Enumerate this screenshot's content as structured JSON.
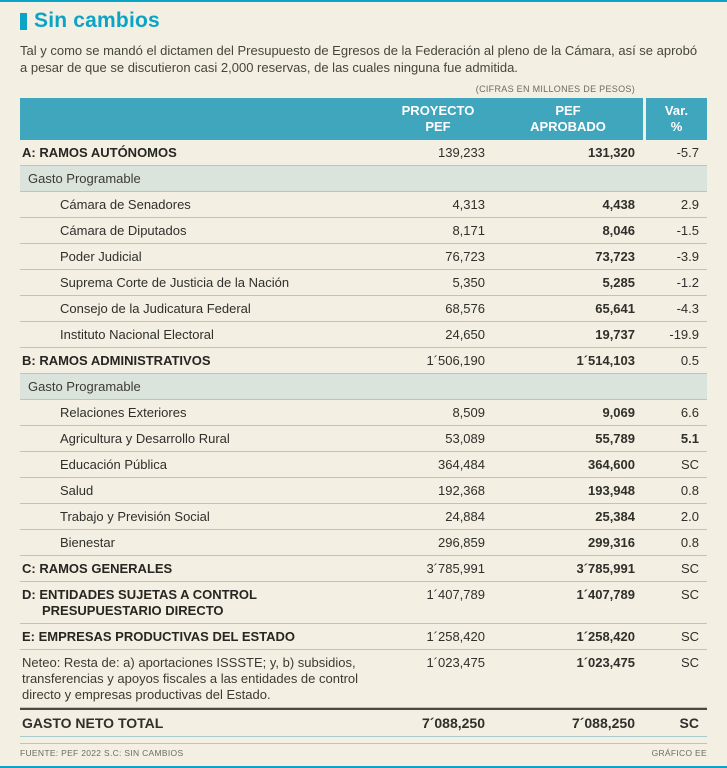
{
  "page": {
    "title": "Sin cambios",
    "intro": "Tal y como se mandó el dictamen del Presupuesto de Egresos de la Federación al pleno de la Cámara, así se aprobó a pesar de que se discutieron casi 2,000 reservas, de las cuales ninguna fue admitida.",
    "units_note": "(CIFRAS EN MILLONES DE PESOS)",
    "footer_source": "FUENTE: PEF 2022  S.C: SIN CAMBIOS",
    "footer_credit": "GRÁFICO EE"
  },
  "colors": {
    "accent_cyan": "#0ca4c6",
    "header_teal": "#3fa6bd",
    "band_background": "#dae4dd",
    "page_background": "#f3efe2"
  },
  "chart_data": {
    "type": "table",
    "title": "Sin cambios",
    "columns": [
      "",
      "PROYECTO\nPEF",
      "PEF\nAPROBADO",
      "Var.\n%"
    ],
    "rows": [
      {
        "type": "major",
        "label": "A: RAMOS AUTÓNOMOS",
        "proyecto": "139,233",
        "aprobado": "131,320",
        "var": "-5.7"
      },
      {
        "type": "band",
        "label": "Gasto Programable"
      },
      {
        "type": "item",
        "label": "Cámara de Senadores",
        "proyecto": "4,313",
        "aprobado": "4,438",
        "var": "2.9"
      },
      {
        "type": "item",
        "label": "Cámara de Diputados",
        "proyecto": "8,171",
        "aprobado": "8,046",
        "var": "-1.5"
      },
      {
        "type": "item",
        "label": "Poder Judicial",
        "proyecto": "76,723",
        "aprobado": "73,723",
        "var": "-3.9"
      },
      {
        "type": "item",
        "label": "Suprema Corte de Justicia de la Nación",
        "proyecto": "5,350",
        "aprobado": "5,285",
        "var": "-1.2"
      },
      {
        "type": "item",
        "label": "Consejo de la Judicatura Federal",
        "proyecto": "68,576",
        "aprobado": "65,641",
        "var": "-4.3"
      },
      {
        "type": "item",
        "label": "Instituto Nacional Electoral",
        "proyecto": "24,650",
        "aprobado": "19,737",
        "var": "-19.9"
      },
      {
        "type": "major",
        "label": "B: RAMOS ADMINISTRATIVOS",
        "proyecto": "1´506,190",
        "aprobado": "1´514,103",
        "var": "0.5"
      },
      {
        "type": "band",
        "label": "Gasto Programable"
      },
      {
        "type": "item",
        "label": "Relaciones Exteriores",
        "proyecto": "8,509",
        "aprobado": "9,069",
        "var": "6.6"
      },
      {
        "type": "item",
        "label": "Agricultura y Desarrollo Rural",
        "proyecto": "53,089",
        "aprobado": "55,789",
        "var": "5.1",
        "var_bold": true
      },
      {
        "type": "item",
        "label": "Educación Pública",
        "proyecto": "364,484",
        "aprobado": "364,600",
        "var": "SC"
      },
      {
        "type": "item",
        "label": "Salud",
        "proyecto": "192,368",
        "aprobado": "193,948",
        "var": "0.8"
      },
      {
        "type": "item",
        "label": "Trabajo y Previsión Social",
        "proyecto": "24,884",
        "aprobado": "25,384",
        "var": "2.0"
      },
      {
        "type": "item",
        "label": "Bienestar",
        "proyecto": "296,859",
        "aprobado": "299,316",
        "var": "0.8"
      },
      {
        "type": "major",
        "label": "C: RAMOS GENERALES",
        "proyecto": "3´785,991",
        "aprobado": "3´785,991",
        "var": "SC"
      },
      {
        "type": "major",
        "label": "D: ENTIDADES SUJETAS A CONTROL PRESUPUESTARIO DIRECTO",
        "proyecto": "1´407,789",
        "aprobado": "1´407,789",
        "var": "SC"
      },
      {
        "type": "major",
        "label": "E: EMPRESAS PRODUCTIVAS DEL ESTADO",
        "proyecto": "1´258,420",
        "aprobado": "1´258,420",
        "var": "SC"
      },
      {
        "type": "note",
        "label": "Neteo: Resta de: a) aportaciones ISSSTE; y, b) subsidios, transferencias y apoyos fiscales a las entidades de control directo y empresas productivas del Estado.",
        "proyecto": "1´023,475",
        "aprobado": "1´023,475",
        "var": "SC"
      },
      {
        "type": "total",
        "label": "GASTO NETO TOTAL",
        "proyecto": "7´088,250",
        "aprobado": "7´088,250",
        "var": "SC",
        "var_bold": true
      }
    ]
  }
}
